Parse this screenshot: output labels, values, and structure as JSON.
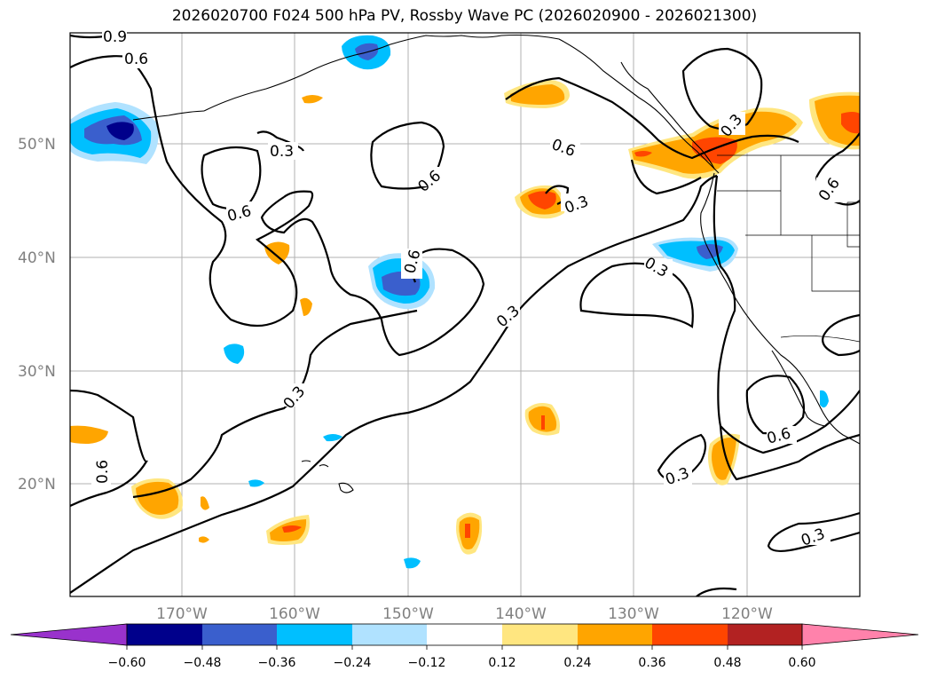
{
  "title": "2026020700 F024 500 hPa PV, Rossby Wave PC (2026020900 - 2026021300)",
  "colors": {
    "neg_060": "#9932CC",
    "neg_048": "#00008B",
    "neg_036": "#3A5FCD",
    "neg_024": "#00BFFF",
    "neg_012": "#B0E2FF",
    "zero": "#FFFFFF",
    "pos_012": "#FFE680",
    "pos_024": "#FFA500",
    "pos_036": "#FF4500",
    "pos_048": "#B22222",
    "pos_060": "#FF82AB",
    "grid": "#b0b0b0",
    "coast": "#000000"
  },
  "map": {
    "lat_labels": [
      "50°N",
      "40°N",
      "30°N",
      "20°N"
    ],
    "lon_labels": [
      "170°W",
      "160°W",
      "150°W",
      "140°W",
      "130°W",
      "120°W"
    ],
    "contour_labels": [
      "0.9",
      "0.6",
      "0.6",
      "0.3",
      "0.6",
      "0.6",
      "0.3",
      "0.6",
      "0.6",
      "0.3",
      "0.3",
      "0.3",
      "0.3",
      "0.3",
      "0.6",
      "0.6",
      "0.3",
      "0.3"
    ]
  },
  "colorbar": {
    "ticks": [
      "−0.60",
      "−0.48",
      "−0.36",
      "−0.24",
      "−0.12",
      "0.12",
      "0.24",
      "0.36",
      "0.48",
      "0.60"
    ]
  }
}
